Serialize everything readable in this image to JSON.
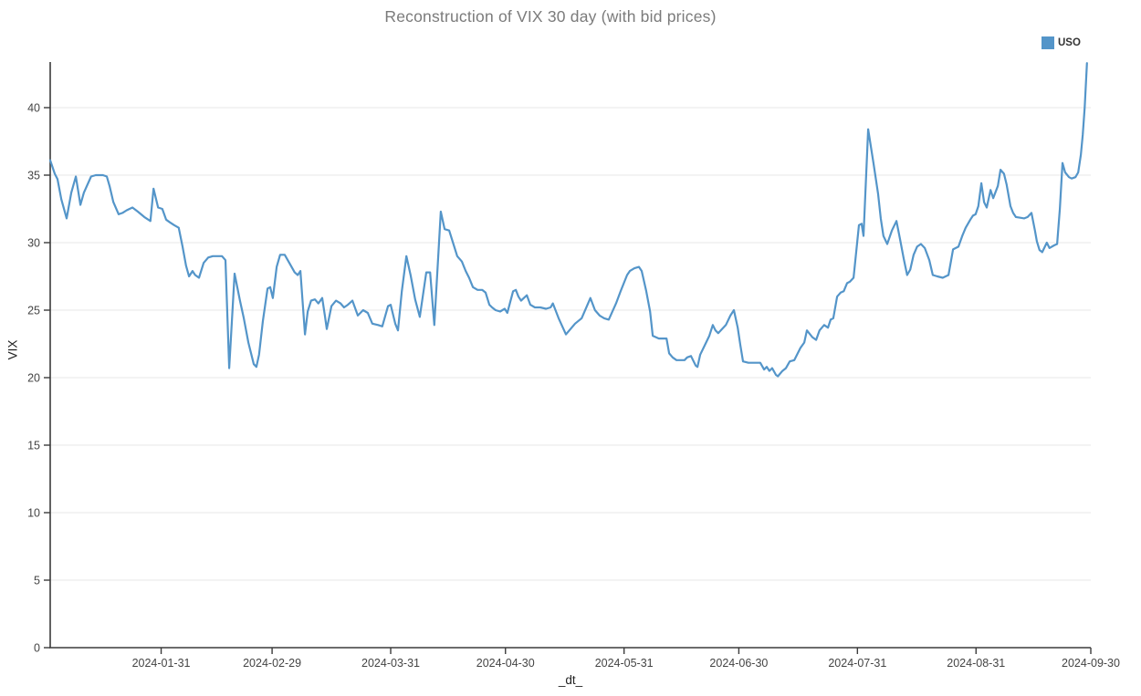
{
  "title": "Reconstruction of VIX 30 day (with bid prices)",
  "legend": {
    "label": "USO",
    "color": "#5495c9"
  },
  "colors": {
    "line": "#5495c9",
    "grid": "#e7e7e7",
    "axis": "#3b3b3b",
    "title_text": "#7b7b7b",
    "tick_text": "#444444"
  },
  "y_axis": {
    "label": "VIX",
    "ticks": [
      0,
      5,
      10,
      15,
      20,
      25,
      30,
      35,
      40
    ]
  },
  "x_axis": {
    "label": "_dt_",
    "start_date": "2024-01-02",
    "ticks": [
      {
        "day": 29,
        "label": "2024-01-31"
      },
      {
        "day": 58,
        "label": "2024-02-29"
      },
      {
        "day": 89,
        "label": "2024-03-31"
      },
      {
        "day": 119,
        "label": "2024-04-30"
      },
      {
        "day": 150,
        "label": "2024-05-31"
      },
      {
        "day": 180,
        "label": "2024-06-30"
      },
      {
        "day": 211,
        "label": "2024-07-31"
      },
      {
        "day": 242,
        "label": "2024-08-31"
      },
      {
        "day": 272,
        "label": "2024-09-30"
      }
    ]
  },
  "chart_data": {
    "type": "line",
    "title": "Reconstruction of VIX 30 day (with bid prices)",
    "xlabel": "_dt_",
    "ylabel": "VIX",
    "ylim": [
      0,
      43.4
    ],
    "x_unit": "days since 2024-01-02",
    "x_range_days": [
      0,
      272
    ],
    "grid": "horizontal-only",
    "legend_position": "top-right-outside",
    "series": [
      {
        "name": "USO",
        "color": "#5495c9",
        "points": [
          [
            0,
            36.1
          ],
          [
            1.2,
            35.1
          ],
          [
            1.9,
            34.7
          ],
          [
            2.9,
            33.2
          ],
          [
            4.3,
            31.8
          ],
          [
            5.5,
            33.7
          ],
          [
            6.7,
            34.9
          ],
          [
            7.9,
            32.8
          ],
          [
            8.8,
            33.7
          ],
          [
            10.7,
            34.9
          ],
          [
            11.9,
            35.0
          ],
          [
            13.8,
            35.0
          ],
          [
            14.8,
            34.9
          ],
          [
            15.5,
            34.2
          ],
          [
            16.5,
            33.0
          ],
          [
            17.9,
            32.1
          ],
          [
            18.9,
            32.2
          ],
          [
            20,
            32.4
          ],
          [
            21.5,
            32.6
          ],
          [
            22.9,
            32.3
          ],
          [
            24.6,
            31.9
          ],
          [
            26.2,
            31.6
          ],
          [
            27,
            34.0
          ],
          [
            28.2,
            32.6
          ],
          [
            29.3,
            32.5
          ],
          [
            30.3,
            31.7
          ],
          [
            31.3,
            31.5
          ],
          [
            32.4,
            31.3
          ],
          [
            33.6,
            31.1
          ],
          [
            34.6,
            29.7
          ],
          [
            35.5,
            28.3
          ],
          [
            36.3,
            27.5
          ],
          [
            37.2,
            27.9
          ],
          [
            37.9,
            27.6
          ],
          [
            38.9,
            27.4
          ],
          [
            40.1,
            28.5
          ],
          [
            41.3,
            28.9
          ],
          [
            42.5,
            29.0
          ],
          [
            43.7,
            29.0
          ],
          [
            44.9,
            29.0
          ],
          [
            45.8,
            28.7
          ],
          [
            46.8,
            20.7
          ],
          [
            48.2,
            27.7
          ],
          [
            49.6,
            25.7
          ],
          [
            50.6,
            24.4
          ],
          [
            51.8,
            22.6
          ],
          [
            53.2,
            21.0
          ],
          [
            53.9,
            20.8
          ],
          [
            54.6,
            21.7
          ],
          [
            55.6,
            24.2
          ],
          [
            56.8,
            26.6
          ],
          [
            57.5,
            26.7
          ],
          [
            58.2,
            25.9
          ],
          [
            59.2,
            28.2
          ],
          [
            60.1,
            29.1
          ],
          [
            61.3,
            29.1
          ],
          [
            62.7,
            28.4
          ],
          [
            63.9,
            27.8
          ],
          [
            64.7,
            27.6
          ],
          [
            65.4,
            27.9
          ],
          [
            66.6,
            23.2
          ],
          [
            67.3,
            24.9
          ],
          [
            68.2,
            25.7
          ],
          [
            69.2,
            25.8
          ],
          [
            70.1,
            25.5
          ],
          [
            71.1,
            25.9
          ],
          [
            71.8,
            24.6
          ],
          [
            72.3,
            23.6
          ],
          [
            73.5,
            25.3
          ],
          [
            74.7,
            25.7
          ],
          [
            75.9,
            25.5
          ],
          [
            76.8,
            25.2
          ],
          [
            77.8,
            25.4
          ],
          [
            79,
            25.7
          ],
          [
            80.4,
            24.6
          ],
          [
            81.8,
            25.0
          ],
          [
            83,
            24.8
          ],
          [
            84.2,
            24.0
          ],
          [
            85.7,
            23.9
          ],
          [
            86.8,
            23.8
          ],
          [
            88.3,
            25.3
          ],
          [
            89,
            25.4
          ],
          [
            90.2,
            24.0
          ],
          [
            90.9,
            23.5
          ],
          [
            91.9,
            26.4
          ],
          [
            93.1,
            29.0
          ],
          [
            94.2,
            27.6
          ],
          [
            95.4,
            25.8
          ],
          [
            96.6,
            24.5
          ],
          [
            98.3,
            27.8
          ],
          [
            99.3,
            27.8
          ],
          [
            100.4,
            23.9
          ],
          [
            102.1,
            32.3
          ],
          [
            103.1,
            31.0
          ],
          [
            104.3,
            30.9
          ],
          [
            105.5,
            29.8
          ],
          [
            106.4,
            29.0
          ],
          [
            107.6,
            28.6
          ],
          [
            108.6,
            27.9
          ],
          [
            109.5,
            27.4
          ],
          [
            110.5,
            26.7
          ],
          [
            111.7,
            26.5
          ],
          [
            112.9,
            26.5
          ],
          [
            113.8,
            26.3
          ],
          [
            114.8,
            25.4
          ],
          [
            115.5,
            25.2
          ],
          [
            116.4,
            25.0
          ],
          [
            117.6,
            24.9
          ],
          [
            118.8,
            25.1
          ],
          [
            119.5,
            24.8
          ],
          [
            121,
            26.4
          ],
          [
            121.7,
            26.5
          ],
          [
            122.4,
            26.0
          ],
          [
            123.1,
            25.7
          ],
          [
            123.8,
            25.9
          ],
          [
            124.6,
            26.1
          ],
          [
            125.5,
            25.4
          ],
          [
            126.7,
            25.2
          ],
          [
            128.1,
            25.2
          ],
          [
            129.6,
            25.1
          ],
          [
            130.8,
            25.2
          ],
          [
            131.4,
            25.5
          ],
          [
            132.9,
            24.4
          ],
          [
            134.8,
            23.2
          ],
          [
            136,
            23.6
          ],
          [
            137.2,
            24.0
          ],
          [
            138.9,
            24.4
          ],
          [
            141.2,
            25.9
          ],
          [
            142.4,
            25.0
          ],
          [
            143.6,
            24.6
          ],
          [
            144.8,
            24.4
          ],
          [
            146,
            24.3
          ],
          [
            147.9,
            25.5
          ],
          [
            149.1,
            26.4
          ],
          [
            150.8,
            27.6
          ],
          [
            151.5,
            27.9
          ],
          [
            152.7,
            28.1
          ],
          [
            153.9,
            28.2
          ],
          [
            154.6,
            27.9
          ],
          [
            155.8,
            26.4
          ],
          [
            156.8,
            24.9
          ],
          [
            157.5,
            23.1
          ],
          [
            159.1,
            22.9
          ],
          [
            161.1,
            22.9
          ],
          [
            161.8,
            21.8
          ],
          [
            162.7,
            21.5
          ],
          [
            163.7,
            21.3
          ],
          [
            165.8,
            21.3
          ],
          [
            166.5,
            21.5
          ],
          [
            167.5,
            21.6
          ],
          [
            168.7,
            20.9
          ],
          [
            169.2,
            20.8
          ],
          [
            169.9,
            21.7
          ],
          [
            171.1,
            22.4
          ],
          [
            172.3,
            23.1
          ],
          [
            173.2,
            23.9
          ],
          [
            173.9,
            23.5
          ],
          [
            174.6,
            23.3
          ],
          [
            176.6,
            23.9
          ],
          [
            177.8,
            24.6
          ],
          [
            178.7,
            25.0
          ],
          [
            179.7,
            23.7
          ],
          [
            180.4,
            22.4
          ],
          [
            181.1,
            21.2
          ],
          [
            182.5,
            21.1
          ],
          [
            184.2,
            21.1
          ],
          [
            185.6,
            21.1
          ],
          [
            186.6,
            20.6
          ],
          [
            187.3,
            20.8
          ],
          [
            188,
            20.5
          ],
          [
            188.7,
            20.7
          ],
          [
            189.7,
            20.2
          ],
          [
            190.2,
            20.1
          ],
          [
            191.4,
            20.5
          ],
          [
            192.3,
            20.7
          ],
          [
            193.3,
            21.2
          ],
          [
            194.5,
            21.3
          ],
          [
            196.1,
            22.2
          ],
          [
            197.1,
            22.6
          ],
          [
            197.8,
            23.5
          ],
          [
            199.2,
            23.0
          ],
          [
            200.2,
            22.8
          ],
          [
            201.1,
            23.5
          ],
          [
            202.3,
            23.9
          ],
          [
            203.3,
            23.7
          ],
          [
            204,
            24.3
          ],
          [
            204.7,
            24.4
          ],
          [
            205.7,
            26.0
          ],
          [
            206.6,
            26.3
          ],
          [
            207.4,
            26.4
          ],
          [
            208.3,
            27.0
          ],
          [
            209,
            27.1
          ],
          [
            210,
            27.4
          ],
          [
            211.4,
            31.3
          ],
          [
            212.1,
            31.4
          ],
          [
            212.6,
            30.5
          ],
          [
            213.8,
            38.4
          ],
          [
            215.2,
            35.9
          ],
          [
            216.4,
            33.6
          ],
          [
            217.1,
            31.8
          ],
          [
            217.8,
            30.5
          ],
          [
            218.8,
            29.9
          ],
          [
            220,
            30.9
          ],
          [
            221.2,
            31.6
          ],
          [
            222.1,
            30.3
          ],
          [
            223.1,
            28.8
          ],
          [
            224,
            27.6
          ],
          [
            224.8,
            28.0
          ],
          [
            225.7,
            29.1
          ],
          [
            226.6,
            29.7
          ],
          [
            227.6,
            29.9
          ],
          [
            228.6,
            29.6
          ],
          [
            229.8,
            28.7
          ],
          [
            230.7,
            27.6
          ],
          [
            231.9,
            27.5
          ],
          [
            233.3,
            27.4
          ],
          [
            234.8,
            27.6
          ],
          [
            236,
            29.5
          ],
          [
            237.4,
            29.7
          ],
          [
            238.4,
            30.5
          ],
          [
            239.3,
            31.1
          ],
          [
            240.5,
            31.7
          ],
          [
            241.2,
            32.0
          ],
          [
            241.9,
            32.1
          ],
          [
            242.6,
            32.7
          ],
          [
            243.4,
            34.4
          ],
          [
            244.1,
            33.0
          ],
          [
            244.8,
            32.6
          ],
          [
            245.8,
            33.9
          ],
          [
            246.5,
            33.3
          ],
          [
            247.7,
            34.2
          ],
          [
            248.4,
            35.4
          ],
          [
            249.3,
            35.1
          ],
          [
            250,
            34.3
          ],
          [
            251,
            32.7
          ],
          [
            251.7,
            32.2
          ],
          [
            252.4,
            31.9
          ],
          [
            253.4,
            31.85
          ],
          [
            254.6,
            31.8
          ],
          [
            255.5,
            31.9
          ],
          [
            256.5,
            32.2
          ],
          [
            257.4,
            30.9
          ],
          [
            257.9,
            30.1
          ],
          [
            258.6,
            29.45
          ],
          [
            259.3,
            29.3
          ],
          [
            260.5,
            30.0
          ],
          [
            261.2,
            29.6
          ],
          [
            262.4,
            29.8
          ],
          [
            263.2,
            29.9
          ],
          [
            263.9,
            32.5
          ],
          [
            264.6,
            35.9
          ],
          [
            265.3,
            35.2
          ],
          [
            266.3,
            34.85
          ],
          [
            267,
            34.75
          ],
          [
            268,
            34.85
          ],
          [
            268.7,
            35.2
          ],
          [
            269.4,
            36.5
          ],
          [
            269.9,
            38.0
          ],
          [
            270.4,
            40.0
          ],
          [
            271,
            43.3
          ]
        ]
      }
    ]
  }
}
